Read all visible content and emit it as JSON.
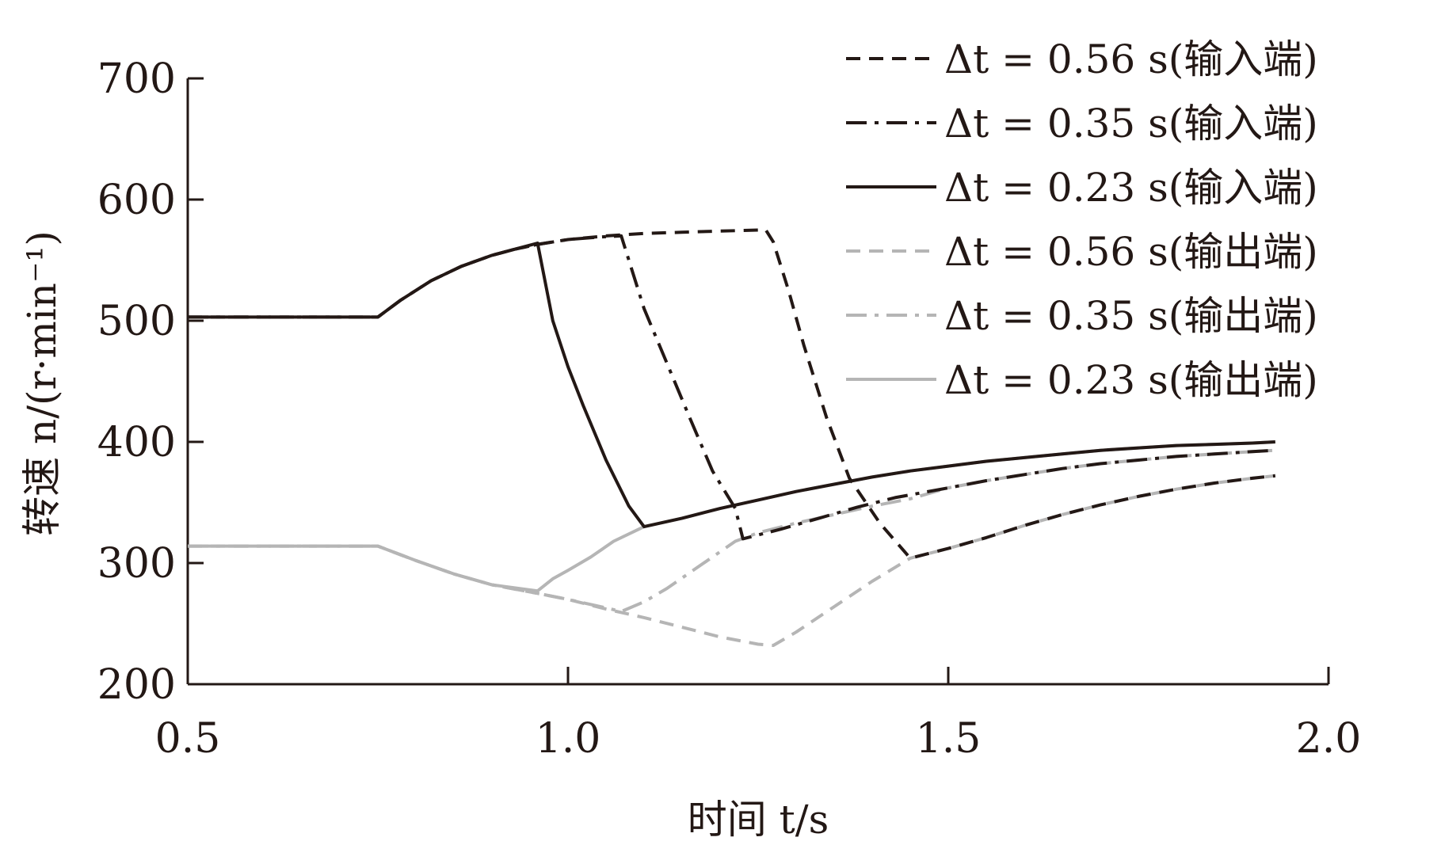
{
  "chart_data": {
    "type": "line",
    "xlabel": "时间 t/s",
    "ylabel": "转速 n/(r·min⁻¹)",
    "xlim": [
      0.5,
      2.0
    ],
    "ylim": [
      200,
      700
    ],
    "x_ticks": [
      "0.5",
      "1.0",
      "1.5",
      "2.0"
    ],
    "y_ticks": [
      "200",
      "300",
      "400",
      "500",
      "600",
      "700"
    ],
    "grid": false,
    "legend_position": "top-right",
    "series": [
      {
        "name": "Δt = 0.56 s(输入端)",
        "color": "#231815",
        "style": "dashed",
        "points": [
          [
            0.5,
            503
          ],
          [
            0.75,
            503
          ],
          [
            0.78,
            517
          ],
          [
            0.82,
            533
          ],
          [
            0.86,
            545
          ],
          [
            0.9,
            554
          ],
          [
            0.93,
            559
          ],
          [
            0.96,
            563
          ],
          [
            1.0,
            567
          ],
          [
            1.05,
            570
          ],
          [
            1.1,
            572
          ],
          [
            1.15,
            573
          ],
          [
            1.2,
            574
          ],
          [
            1.26,
            575
          ],
          [
            1.27,
            565
          ],
          [
            1.29,
            525
          ],
          [
            1.31,
            480
          ],
          [
            1.34,
            420
          ],
          [
            1.37,
            370
          ],
          [
            1.41,
            333
          ],
          [
            1.45,
            304
          ],
          [
            1.5,
            312
          ],
          [
            1.55,
            321
          ],
          [
            1.6,
            331
          ],
          [
            1.65,
            340
          ],
          [
            1.7,
            348
          ],
          [
            1.75,
            355
          ],
          [
            1.8,
            361
          ],
          [
            1.85,
            366
          ],
          [
            1.9,
            370
          ],
          [
            1.93,
            372
          ]
        ]
      },
      {
        "name": "Δt = 0.35 s(输入端)",
        "color": "#231815",
        "style": "dashdot",
        "points": [
          [
            0.5,
            503
          ],
          [
            0.75,
            503
          ],
          [
            0.78,
            517
          ],
          [
            0.82,
            533
          ],
          [
            0.86,
            545
          ],
          [
            0.9,
            554
          ],
          [
            0.93,
            559
          ],
          [
            0.96,
            563
          ],
          [
            1.0,
            567
          ],
          [
            1.04,
            569
          ],
          [
            1.07,
            570
          ],
          [
            1.08,
            550
          ],
          [
            1.1,
            510
          ],
          [
            1.13,
            465
          ],
          [
            1.16,
            420
          ],
          [
            1.19,
            376
          ],
          [
            1.22,
            345
          ],
          [
            1.23,
            320
          ],
          [
            1.28,
            328
          ],
          [
            1.33,
            337
          ],
          [
            1.38,
            346
          ],
          [
            1.43,
            354
          ],
          [
            1.5,
            362
          ],
          [
            1.55,
            368
          ],
          [
            1.6,
            373
          ],
          [
            1.65,
            378
          ],
          [
            1.7,
            382
          ],
          [
            1.75,
            385
          ],
          [
            1.8,
            388
          ],
          [
            1.85,
            390
          ],
          [
            1.9,
            392
          ],
          [
            1.93,
            393
          ]
        ]
      },
      {
        "name": "Δt = 0.23 s(输入端)",
        "color": "#231815",
        "style": "solid",
        "points": [
          [
            0.5,
            503
          ],
          [
            0.75,
            503
          ],
          [
            0.78,
            517
          ],
          [
            0.82,
            533
          ],
          [
            0.86,
            545
          ],
          [
            0.9,
            554
          ],
          [
            0.93,
            559
          ],
          [
            0.96,
            564
          ],
          [
            0.98,
            500
          ],
          [
            1.0,
            462
          ],
          [
            1.02,
            430
          ],
          [
            1.05,
            385
          ],
          [
            1.08,
            347
          ],
          [
            1.1,
            330
          ],
          [
            1.15,
            337
          ],
          [
            1.2,
            345
          ],
          [
            1.25,
            352
          ],
          [
            1.3,
            359
          ],
          [
            1.35,
            365
          ],
          [
            1.4,
            371
          ],
          [
            1.45,
            376
          ],
          [
            1.5,
            380
          ],
          [
            1.55,
            384
          ],
          [
            1.6,
            387
          ],
          [
            1.65,
            390
          ],
          [
            1.7,
            393
          ],
          [
            1.75,
            395
          ],
          [
            1.8,
            397
          ],
          [
            1.85,
            398
          ],
          [
            1.9,
            399
          ],
          [
            1.93,
            400
          ]
        ]
      },
      {
        "name": "Δt = 0.56 s(输出端)",
        "color": "#b5b5b5",
        "style": "dashed",
        "points": [
          [
            0.5,
            314
          ],
          [
            0.75,
            314
          ],
          [
            0.8,
            302
          ],
          [
            0.85,
            291
          ],
          [
            0.9,
            282
          ],
          [
            0.96,
            275
          ],
          [
            1.0,
            270
          ],
          [
            1.05,
            262
          ],
          [
            1.1,
            255
          ],
          [
            1.15,
            247
          ],
          [
            1.2,
            239
          ],
          [
            1.25,
            233
          ],
          [
            1.27,
            232
          ],
          [
            1.3,
            243
          ],
          [
            1.35,
            264
          ],
          [
            1.4,
            285
          ],
          [
            1.45,
            304
          ],
          [
            1.5,
            312
          ],
          [
            1.55,
            321
          ],
          [
            1.6,
            331
          ],
          [
            1.65,
            340
          ],
          [
            1.7,
            348
          ],
          [
            1.75,
            355
          ],
          [
            1.8,
            361
          ],
          [
            1.85,
            366
          ],
          [
            1.9,
            370
          ],
          [
            1.93,
            372
          ]
        ]
      },
      {
        "name": "Δt = 0.35 s(输出端)",
        "color": "#b5b5b5",
        "style": "dashdot",
        "points": [
          [
            0.5,
            314
          ],
          [
            0.75,
            314
          ],
          [
            0.8,
            302
          ],
          [
            0.85,
            291
          ],
          [
            0.9,
            282
          ],
          [
            0.96,
            275
          ],
          [
            1.0,
            270
          ],
          [
            1.05,
            263
          ],
          [
            1.07,
            260
          ],
          [
            1.1,
            268
          ],
          [
            1.13,
            279
          ],
          [
            1.16,
            292
          ],
          [
            1.19,
            305
          ],
          [
            1.22,
            318
          ],
          [
            1.25,
            325
          ],
          [
            1.3,
            333
          ],
          [
            1.35,
            340
          ],
          [
            1.4,
            347
          ],
          [
            1.45,
            353
          ],
          [
            1.5,
            362
          ],
          [
            1.55,
            368
          ],
          [
            1.6,
            373
          ],
          [
            1.65,
            378
          ],
          [
            1.7,
            382
          ],
          [
            1.75,
            385
          ],
          [
            1.8,
            388
          ],
          [
            1.85,
            390
          ],
          [
            1.9,
            392
          ],
          [
            1.93,
            393
          ]
        ]
      },
      {
        "name": "Δt = 0.23 s(输出端)",
        "color": "#b5b5b5",
        "style": "solid",
        "points": [
          [
            0.5,
            314
          ],
          [
            0.75,
            314
          ],
          [
            0.8,
            302
          ],
          [
            0.85,
            291
          ],
          [
            0.9,
            282
          ],
          [
            0.96,
            277
          ],
          [
            0.98,
            287
          ],
          [
            1.0,
            294
          ],
          [
            1.03,
            305
          ],
          [
            1.06,
            318
          ],
          [
            1.1,
            330
          ],
          [
            1.15,
            337
          ],
          [
            1.2,
            345
          ],
          [
            1.25,
            352
          ],
          [
            1.3,
            359
          ],
          [
            1.35,
            365
          ],
          [
            1.4,
            371
          ],
          [
            1.45,
            376
          ],
          [
            1.5,
            380
          ],
          [
            1.55,
            384
          ],
          [
            1.6,
            387
          ],
          [
            1.65,
            390
          ],
          [
            1.7,
            393
          ],
          [
            1.75,
            395
          ],
          [
            1.8,
            397
          ],
          [
            1.85,
            398
          ],
          [
            1.9,
            399
          ],
          [
            1.93,
            400
          ]
        ]
      }
    ]
  }
}
